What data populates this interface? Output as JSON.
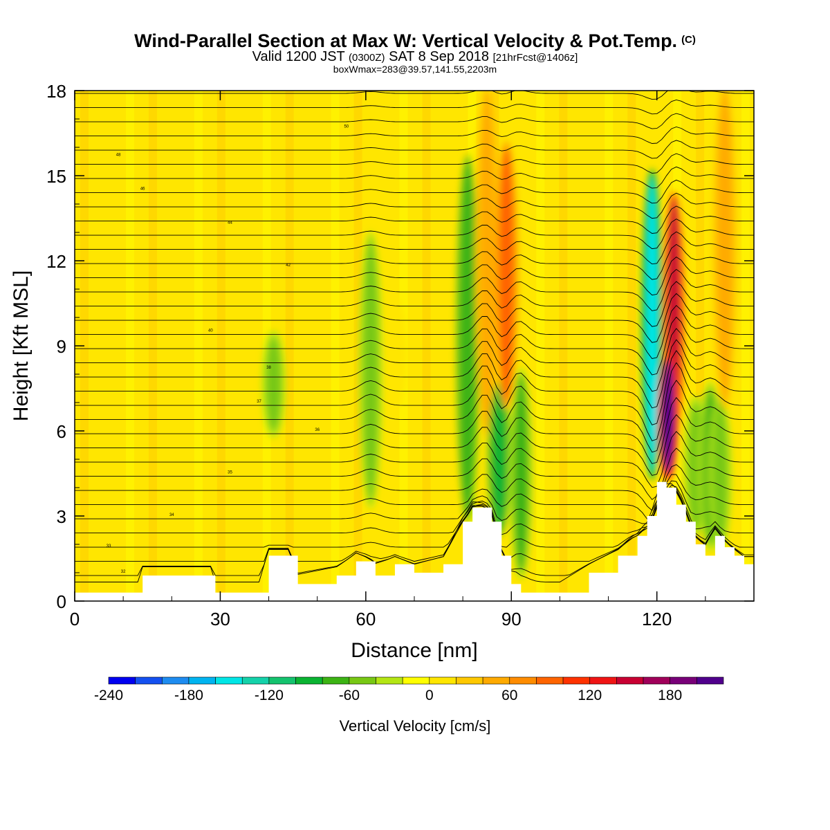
{
  "titles": {
    "main": "Wind-Parallel Section at Max W: Vertical Velocity & Pot.Temp.",
    "copyright": "(C)",
    "valid_prefix": "Valid 1200 JST",
    "valid_utc": "(0300Z)",
    "valid_date": "SAT 8 Sep 2018",
    "forecast": "[21hrFcst@1406z]",
    "box": "boxWmax=283@39.57,141.55,2203m"
  },
  "chart_data": {
    "type": "heatmap",
    "xlabel": "Distance [nm]",
    "ylabel": "Height [Kft MSL]",
    "xlim": [
      0,
      140
    ],
    "ylim": [
      0,
      18
    ],
    "x_ticks": [
      0,
      30,
      60,
      90,
      120
    ],
    "y_ticks": [
      0,
      3,
      6,
      9,
      12,
      15,
      18
    ],
    "colorbar": {
      "label": "Vertical Velocity [cm/s]",
      "ticks": [
        -240,
        -180,
        -120,
        -60,
        0,
        60,
        120,
        180
      ],
      "range": [
        -240,
        220
      ],
      "step": 20,
      "colors": [
        "#0000f0",
        "#1450f0",
        "#1e8cf0",
        "#00b4f0",
        "#00e6e6",
        "#14d2aa",
        "#14c36e",
        "#0ab432",
        "#3cb414",
        "#78c814",
        "#b4e614",
        "#ffff00",
        "#ffe600",
        "#ffc800",
        "#ffaa00",
        "#ff8c00",
        "#ff6400",
        "#ff3200",
        "#f01414",
        "#c80032",
        "#a0005a",
        "#780078",
        "#50008c"
      ]
    },
    "vertical_velocity_features": [
      {
        "x": 41,
        "bottom": 6.0,
        "top": 9.3,
        "w": -45
      },
      {
        "x": 61,
        "bottom": 3.5,
        "top": 12.8,
        "w": -50
      },
      {
        "x": 66,
        "bottom": 7.0,
        "top": 10.5,
        "w": 15
      },
      {
        "x": 81,
        "bottom": 3.0,
        "top": 15.5,
        "w": -80
      },
      {
        "x": 85,
        "bottom": 6.0,
        "top": 18.0,
        "w": 55
      },
      {
        "x": 87.5,
        "bottom": 2.5,
        "top": 7.5,
        "w": -90
      },
      {
        "x": 89,
        "bottom": 7.0,
        "top": 16.0,
        "w": 80
      },
      {
        "x": 92,
        "bottom": 1.0,
        "top": 8.0,
        "w": -65
      },
      {
        "x": 119,
        "bottom": 4.5,
        "top": 15.0,
        "w": -160
      },
      {
        "x": 123.5,
        "bottom": 6.0,
        "top": 14.2,
        "w": 150
      },
      {
        "x": 122.3,
        "bottom": 4.5,
        "top": 8.5,
        "w": 200
      },
      {
        "x": 128,
        "bottom": 2.5,
        "top": 7.0,
        "w": -55
      },
      {
        "x": 131,
        "bottom": 2.0,
        "top": 7.5,
        "w": -65
      },
      {
        "x": 133,
        "bottom": 2.0,
        "top": 7.0,
        "w": -60
      },
      {
        "x": 134,
        "bottom": 7.0,
        "top": 18.0,
        "w": 45
      }
    ],
    "terrain": {
      "x": [
        0,
        13,
        14,
        28,
        29,
        38,
        40,
        44,
        46,
        54,
        58,
        62,
        66,
        70,
        76,
        80,
        82,
        86,
        88,
        90,
        92,
        95,
        100,
        106,
        112,
        116,
        118,
        120,
        122,
        124,
        126,
        128,
        130,
        132,
        134,
        136,
        138,
        140
      ],
      "y": [
        0.3,
        0.3,
        0.9,
        0.9,
        0.3,
        0.3,
        1.6,
        1.6,
        0.6,
        0.9,
        1.4,
        0.9,
        1.3,
        1.0,
        1.3,
        2.8,
        3.3,
        2.8,
        1.6,
        0.6,
        0.3,
        0.3,
        0.3,
        1.0,
        1.6,
        2.3,
        3.0,
        4.2,
        4.0,
        3.4,
        2.8,
        2.0,
        1.6,
        2.3,
        1.9,
        1.6,
        1.3,
        1.3
      ]
    },
    "isentropes": {
      "label_note": "contour labels as printed",
      "label_values": [
        32,
        33,
        34,
        35,
        36,
        37,
        38,
        40,
        42,
        44,
        46,
        48,
        50
      ]
    }
  }
}
